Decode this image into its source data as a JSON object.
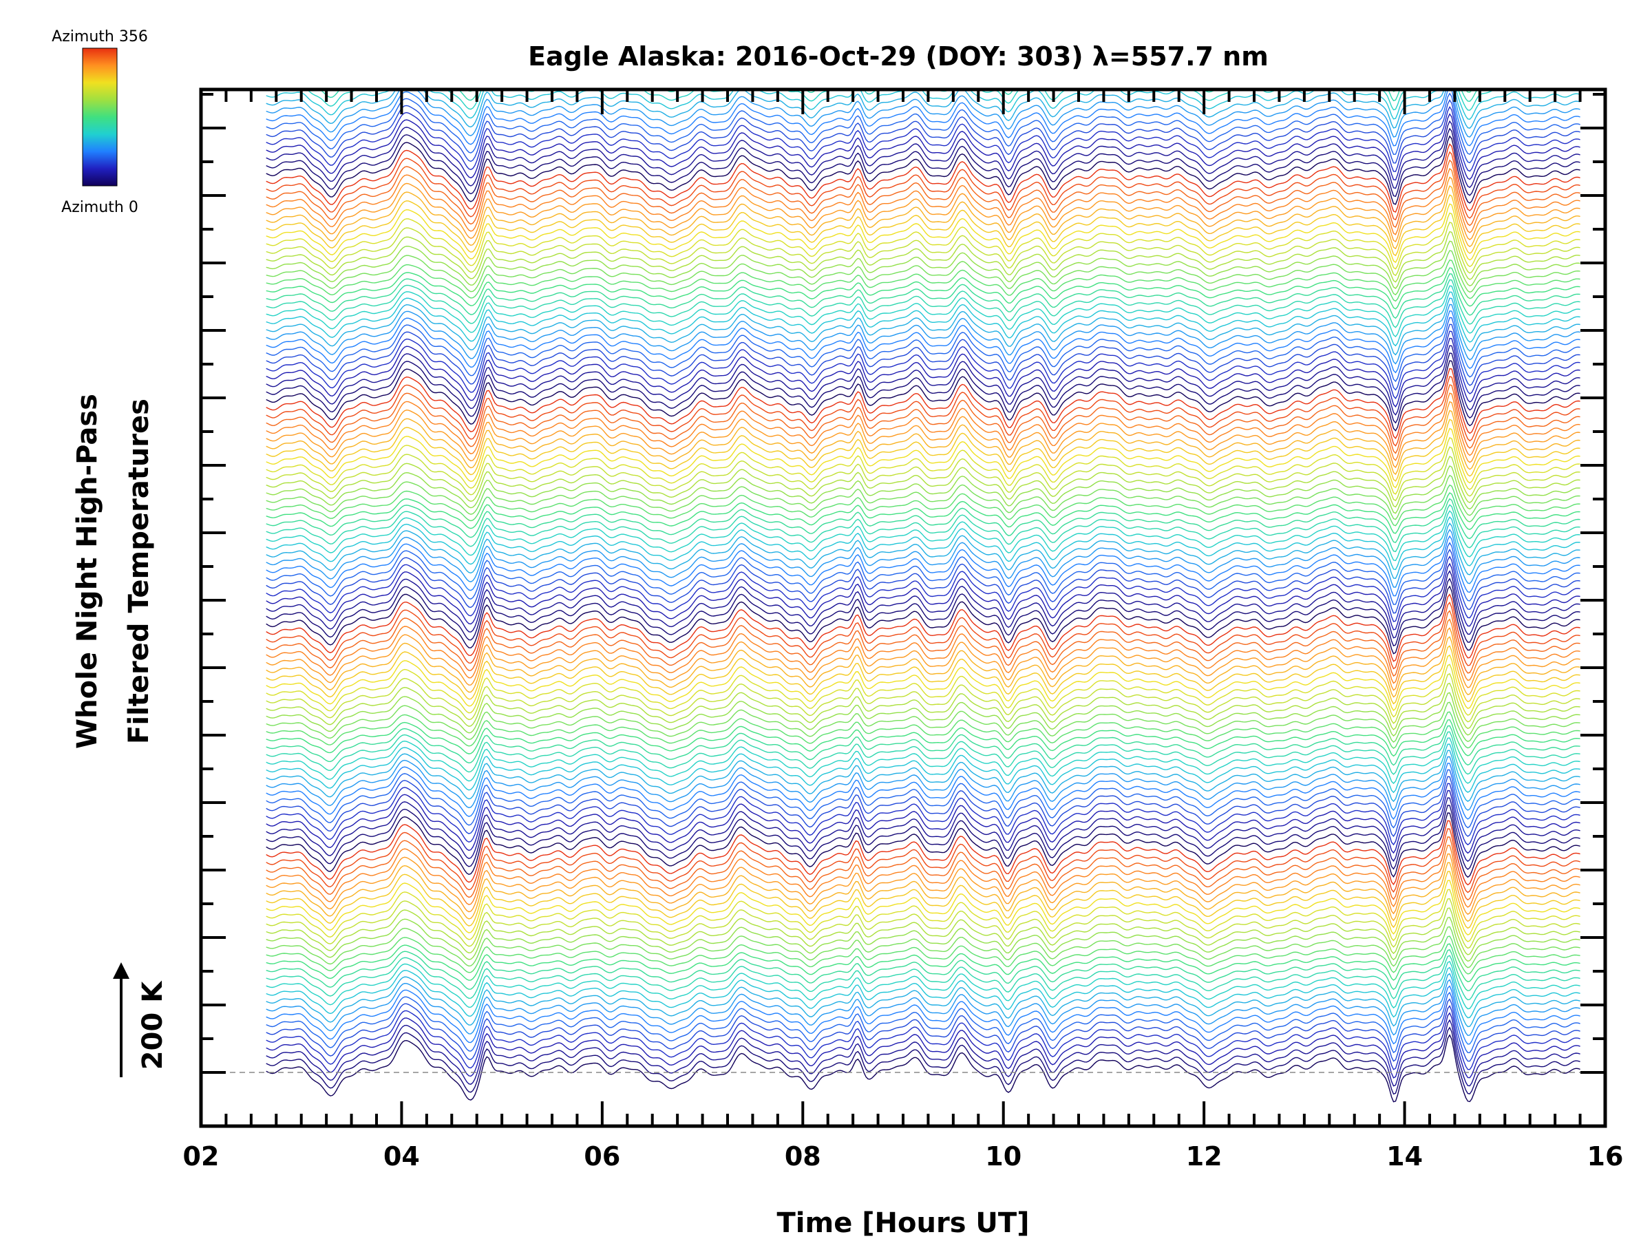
{
  "chart_data": {
    "type": "line",
    "title": "Eagle Alaska: 2016-Oct-29 (DOY: 303) λ=557.7 nm",
    "xlabel": "Time [Hours UT]",
    "ylabel_line1": "Whole Night High-Pass",
    "ylabel_line2": "Filtered Temperatures",
    "scale_label": "200 K",
    "xlim": [
      2,
      16
    ],
    "x_ticks": [
      "02",
      "04",
      "06",
      "08",
      "10",
      "12",
      "14",
      "16"
    ],
    "x_start": 2.65,
    "x_end": 15.75,
    "n_traces": 145,
    "y_offset_step_k": 15,
    "y_ticks_count": 15,
    "colorbar": {
      "top_label": "Azimuth 356",
      "bottom_label": "Azimuth 0",
      "colormap": [
        "#10005a",
        "#2020c0",
        "#2080ff",
        "#20d0d0",
        "#40e080",
        "#a0e040",
        "#f0e020",
        "#ff9020",
        "#e83010"
      ]
    },
    "features": [
      {
        "t": 3.3,
        "amp": -40,
        "width": 0.12
      },
      {
        "t": 4.05,
        "amp": 55,
        "width": 0.2
      },
      {
        "t": 4.7,
        "amp": -45,
        "width": 0.12
      },
      {
        "t": 4.85,
        "amp": 35,
        "width": 0.06
      },
      {
        "t": 5.9,
        "amp": 25,
        "width": 0.15
      },
      {
        "t": 6.7,
        "amp": -30,
        "width": 0.2
      },
      {
        "t": 7.4,
        "amp": 35,
        "width": 0.15
      },
      {
        "t": 8.1,
        "amp": -35,
        "width": 0.1
      },
      {
        "t": 8.55,
        "amp": 30,
        "width": 0.06
      },
      {
        "t": 9.1,
        "amp": 25,
        "width": 0.1
      },
      {
        "t": 9.6,
        "amp": 30,
        "width": 0.1
      },
      {
        "t": 10.05,
        "amp": -30,
        "width": 0.08
      },
      {
        "t": 10.5,
        "amp": -30,
        "width": 0.08
      },
      {
        "t": 11.1,
        "amp": 20,
        "width": 0.4
      },
      {
        "t": 12.1,
        "amp": -25,
        "width": 0.12
      },
      {
        "t": 13.3,
        "amp": 30,
        "width": 0.2
      },
      {
        "t": 13.9,
        "amp": -60,
        "width": 0.06
      },
      {
        "t": 14.45,
        "amp": 70,
        "width": 0.06
      },
      {
        "t": 14.65,
        "amp": -50,
        "width": 0.08
      }
    ]
  }
}
